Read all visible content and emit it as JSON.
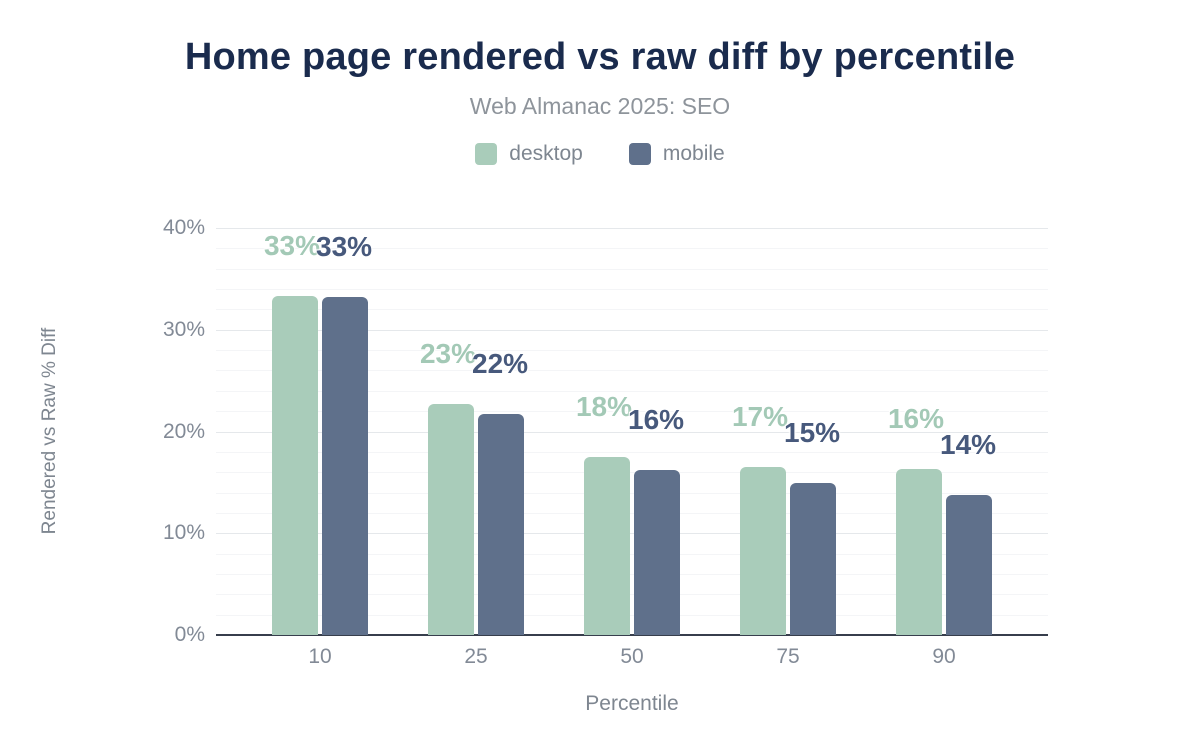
{
  "header": {
    "title": "Home page rendered vs raw diff by percentile",
    "subtitle": "Web Almanac 2025: SEO"
  },
  "legend": {
    "items": [
      {
        "label": "desktop",
        "color": "#a9ccba"
      },
      {
        "label": "mobile",
        "color": "#5f708b"
      }
    ]
  },
  "axes": {
    "x_title": "Percentile",
    "y_title": "Rendered vs Raw % Diff"
  },
  "chart_data": {
    "type": "bar",
    "title": "Home page rendered vs raw diff by percentile",
    "subtitle": "Web Almanac 2025: SEO",
    "categories": [
      "10",
      "25",
      "50",
      "75",
      "90"
    ],
    "series": [
      {
        "name": "desktop",
        "color": "#a9ccba",
        "label_color": "#a3c9b6",
        "values": [
          33.3,
          22.7,
          17.5,
          16.5,
          16.3
        ],
        "labels": [
          "33%",
          "23%",
          "18%",
          "17%",
          "16%"
        ]
      },
      {
        "name": "mobile",
        "color": "#5f708b",
        "label_color": "#47597c",
        "values": [
          33.2,
          21.7,
          16.2,
          14.9,
          13.8
        ],
        "labels": [
          "33%",
          "22%",
          "16%",
          "15%",
          "14%"
        ]
      }
    ],
    "xlabel": "Percentile",
    "ylabel": "Rendered vs Raw % Diff",
    "ylim": [
      0,
      40
    ],
    "yticks": [
      0,
      10,
      20,
      30,
      40
    ],
    "ytick_suffix": "%",
    "grid": {
      "major_step": 10,
      "minor_step": 2,
      "visible": true
    },
    "legend_position": "top"
  },
  "colors": {
    "title": "#1a2b4d",
    "subtitle_text": "#8e949b",
    "axis_text": "#828a96",
    "axis_title_text": "#7e8690",
    "baseline": "#373e4c",
    "grid_major": "#e5e8eb",
    "grid_minor": "#f4f5f7",
    "background": "#ffffff"
  }
}
